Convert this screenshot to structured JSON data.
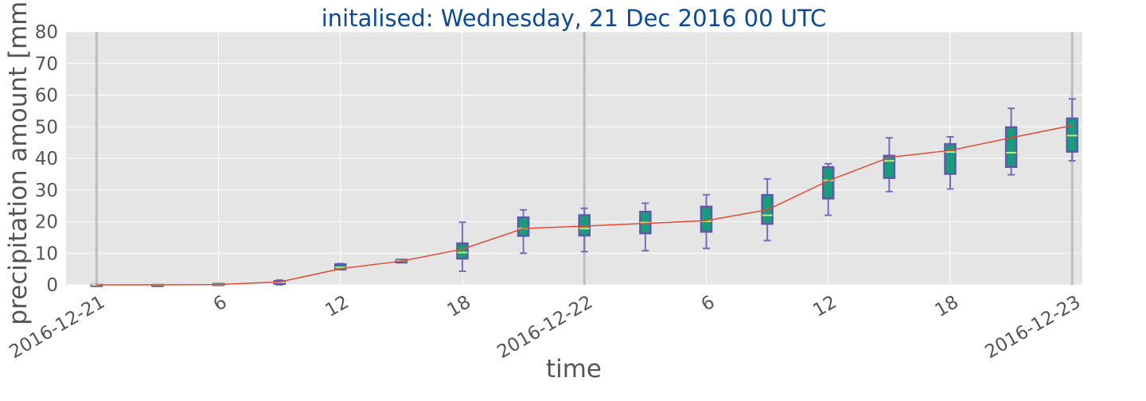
{
  "chart_data": {
    "type": "box",
    "title": "initalised: Wednesday, 21 Dec 2016 00 UTC",
    "xlabel": "time",
    "ylabel": "precipitation amount [mm]",
    "ylim": [
      0,
      80
    ],
    "yticks": [
      0,
      10,
      20,
      30,
      40,
      50,
      60,
      70,
      80
    ],
    "xlim_hours": [
      -1.5,
      48.5
    ],
    "xticks": [
      {
        "hour": 0,
        "label": "2016-12-21"
      },
      {
        "hour": 6,
        "label": "6"
      },
      {
        "hour": 12,
        "label": "12"
      },
      {
        "hour": 18,
        "label": "18"
      },
      {
        "hour": 24,
        "label": "2016-12-22"
      },
      {
        "hour": 30,
        "label": "6"
      },
      {
        "hour": 36,
        "label": "12"
      },
      {
        "hour": 42,
        "label": "18"
      },
      {
        "hour": 48,
        "label": "2016-12-23"
      }
    ],
    "day_boundaries_hours": [
      0,
      24,
      48
    ],
    "grid": true,
    "colors": {
      "background": "#e5e5e5",
      "grid": "#ffffff",
      "day_line": "#bdbdbd",
      "box_fill": "#179c7d",
      "box_edge": "#5a5aa8",
      "whisker": "#7070c0",
      "median": "#c8e870",
      "mean_line": "#e24a33"
    },
    "boxes": [
      {
        "hour": 0,
        "whisker_low": 0,
        "q1": 0,
        "median": 0,
        "q3": 0,
        "whisker_high": 0
      },
      {
        "hour": 3,
        "whisker_low": 0,
        "q1": 0,
        "median": 0,
        "q3": 0,
        "whisker_high": 0
      },
      {
        "hour": 6,
        "whisker_low": 0,
        "q1": 0,
        "median": 0.1,
        "q3": 0.3,
        "whisker_high": 0.4
      },
      {
        "hour": 9,
        "whisker_low": 0,
        "q1": 0.3,
        "median": 0.8,
        "q3": 1.2,
        "whisker_high": 1.5
      },
      {
        "hour": 12,
        "whisker_low": 4.8,
        "q1": 4.9,
        "median": 5.5,
        "q3": 6.5,
        "whisker_high": 6.7
      },
      {
        "hour": 15,
        "whisker_low": 7.0,
        "q1": 7.1,
        "median": 7.6,
        "q3": 7.9,
        "whisker_high": 8.0
      },
      {
        "hour": 18,
        "whisker_low": 4.3,
        "q1": 8.3,
        "median": 10.2,
        "q3": 13.1,
        "whisker_high": 19.8
      },
      {
        "hour": 21,
        "whisker_low": 10.0,
        "q1": 15.5,
        "median": 17.8,
        "q3": 21.3,
        "whisker_high": 23.7
      },
      {
        "hour": 24,
        "whisker_low": 10.5,
        "q1": 15.6,
        "median": 17.8,
        "q3": 22.0,
        "whisker_high": 24.2
      },
      {
        "hour": 27,
        "whisker_low": 10.8,
        "q1": 16.3,
        "median": 19.7,
        "q3": 23.1,
        "whisker_high": 25.8
      },
      {
        "hour": 30,
        "whisker_low": 11.5,
        "q1": 16.8,
        "median": 20.1,
        "q3": 24.7,
        "whisker_high": 28.5
      },
      {
        "hour": 33,
        "whisker_low": 14.0,
        "q1": 19.3,
        "median": 22.0,
        "q3": 28.4,
        "whisker_high": 33.5
      },
      {
        "hour": 36,
        "whisker_low": 22.0,
        "q1": 27.3,
        "median": 33.0,
        "q3": 37.2,
        "whisker_high": 38.3
      },
      {
        "hour": 39,
        "whisker_low": 29.5,
        "q1": 33.8,
        "median": 39.2,
        "q3": 40.8,
        "whisker_high": 46.5
      },
      {
        "hour": 42,
        "whisker_low": 30.3,
        "q1": 35.1,
        "median": 42.0,
        "q3": 44.5,
        "whisker_high": 46.8
      },
      {
        "hour": 45,
        "whisker_low": 34.8,
        "q1": 37.3,
        "median": 41.8,
        "q3": 49.8,
        "whisker_high": 55.8
      },
      {
        "hour": 48,
        "whisker_low": 39.2,
        "q1": 42.1,
        "median": 47.2,
        "q3": 52.6,
        "whisker_high": 58.8
      }
    ],
    "mean_series": {
      "hours": [
        0,
        3,
        6,
        9,
        12,
        15,
        18,
        21,
        24,
        27,
        30,
        33,
        36,
        39,
        42,
        45,
        48
      ],
      "values": [
        0,
        0,
        0.1,
        0.9,
        5.1,
        7.5,
        11.3,
        17.8,
        18.6,
        19.4,
        20.3,
        23.7,
        32.9,
        40.3,
        42.5,
        46.5,
        50.4
      ]
    }
  }
}
